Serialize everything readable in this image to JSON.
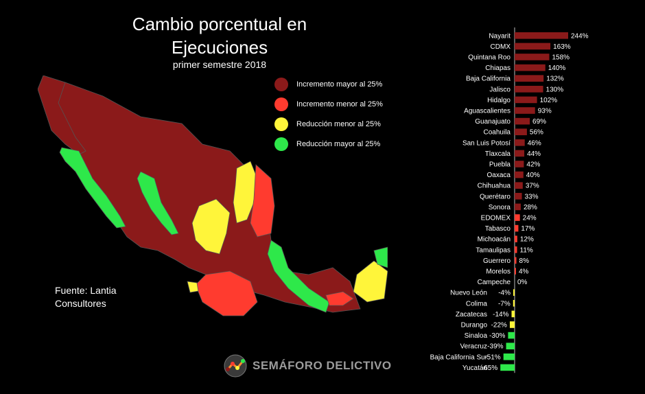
{
  "title_line1": "Cambio porcentual en",
  "title_line2": "Ejecuciones",
  "subtitle": "primer semestre  2018",
  "legend": [
    {
      "label": "Incremento mayor al 25%",
      "color": "#8b1a1a"
    },
    {
      "label": "Incremento menor al 25%",
      "color": "#ff3b2f"
    },
    {
      "label": "Reducción menor al 25%",
      "color": "#fff53a"
    },
    {
      "label": "Reducción mayor al 25%",
      "color": "#2ee84a"
    }
  ],
  "source_line1": "Fuente: Lantia",
  "source_line2": "Consultores",
  "logo_text": "SEMÁFORO DELICTIVO",
  "chart_data": {
    "type": "bar",
    "orientation": "horizontal",
    "categories": [
      "Nayarit",
      "CDMX",
      "Quintana Roo",
      "Chiapas",
      "Baja California",
      "Jalisco",
      "Hidalgo",
      "Aguascalientes",
      "Guanajuato",
      "Coahuila",
      "San Luis Potosí",
      "Tlaxcala",
      "Puebla",
      "Oaxaca",
      "Chihuahua",
      "Querétaro",
      "Sonora",
      "EDOMEX",
      "Tabasco",
      "Michoacán",
      "Tamaulipas",
      "Guerrero",
      "Morelos",
      "Campeche",
      "Nuevo León",
      "Colima",
      "Zacatecas",
      "Durango",
      "Sinaloa",
      "Veracruz",
      "Baja California Sur",
      "Yucatán"
    ],
    "values": [
      244,
      163,
      158,
      140,
      132,
      130,
      102,
      93,
      69,
      56,
      46,
      44,
      42,
      40,
      37,
      33,
      28,
      24,
      17,
      12,
      11,
      8,
      4,
      0,
      -4,
      -7,
      -14,
      -22,
      -30,
      -39,
      -51,
      -65
    ],
    "value_labels": [
      "244%",
      "163%",
      "158%",
      "140%",
      "132%",
      "130%",
      "102%",
      "93%",
      "69%",
      "56%",
      "46%",
      "44%",
      "42%",
      "40%",
      "37%",
      "33%",
      "28%",
      "24%",
      "17%",
      "12%",
      "11%",
      "8%",
      "4%",
      "0%",
      "-4%",
      "-7%",
      "-14%",
      "-22%",
      "-30%",
      "-39%",
      "-51%",
      "-65%"
    ],
    "colors": {
      "high_increase": "#8b1a1a",
      "low_increase": "#ff3b2f",
      "low_decrease": "#fff53a",
      "high_decrease": "#2ee84a"
    }
  }
}
